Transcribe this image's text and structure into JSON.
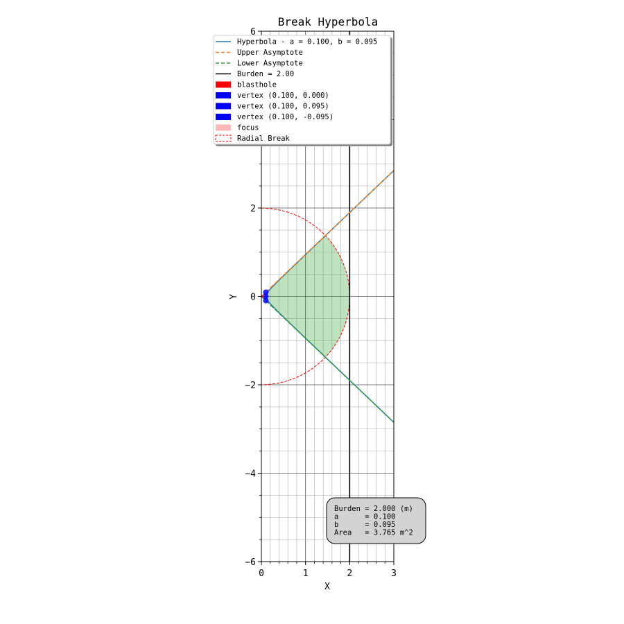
{
  "chart_data": {
    "type": "line",
    "title": "Break Hyperbola",
    "xlabel": "X",
    "ylabel": "Y",
    "xlim": [
      0,
      3
    ],
    "ylim": [
      -6,
      6
    ],
    "xticks": [
      0,
      1,
      2,
      3
    ],
    "yticks": [
      -6,
      -4,
      -2,
      0,
      2,
      6
    ],
    "minor_x_step": 0.2,
    "minor_y_step": 0.5,
    "grid": true,
    "legend_position": "top",
    "hyperbola": {
      "a": 0.1,
      "b": 0.095,
      "x_max": 3
    },
    "asymptote_slope": 0.95,
    "burden_x": 2.0,
    "radial_break_radius": 2.0,
    "shaded_region": "between hyperbola branches, inside radial break circle and left of burden line",
    "points": {
      "blasthole": [
        0,
        0
      ],
      "vertices": [
        [
          0.1,
          0.0
        ],
        [
          0.1,
          0.095
        ],
        [
          0.1,
          -0.095
        ]
      ]
    },
    "legend": [
      {
        "label": "Hyperbola - a = 0.100, b = 0.095",
        "kind": "line",
        "color": "#1f77b4"
      },
      {
        "label": "Upper Asymptote",
        "kind": "dash",
        "color": "#ff7f0e"
      },
      {
        "label": "Lower Asymptote",
        "kind": "dash",
        "color": "#2ca02c"
      },
      {
        "label": "Burden = 2.00",
        "kind": "line",
        "color": "#000000"
      },
      {
        "label": "blasthole",
        "kind": "patch",
        "color": "#ff0000"
      },
      {
        "label": "vertex (0.100, 0.000)",
        "kind": "patch",
        "color": "#0000ff"
      },
      {
        "label": "vertex (0.100, 0.095)",
        "kind": "patch",
        "color": "#0000ff"
      },
      {
        "label": "vertex (0.100, -0.095)",
        "kind": "patch",
        "color": "#0000ff"
      },
      {
        "label": "focus",
        "kind": "patch",
        "color": "#ffb6b6"
      },
      {
        "label": "Radial Break",
        "kind": "dashpatch",
        "color": "#ff0000"
      }
    ],
    "info_box": [
      "Burden = 2.000 (m)",
      "a      = 0.100",
      "b      = 0.095",
      "Area   = 3.765 m^2"
    ],
    "colors": {
      "hyperbola": "#1f77b4",
      "upper_asymptote": "#ff7f0e",
      "lower_asymptote": "#2ca02c",
      "burden": "#000000",
      "shade": "#2ca02c",
      "radial_break": "#ff0000",
      "vertex": "#0000ff",
      "info_bg": "#d3d3d3"
    }
  }
}
